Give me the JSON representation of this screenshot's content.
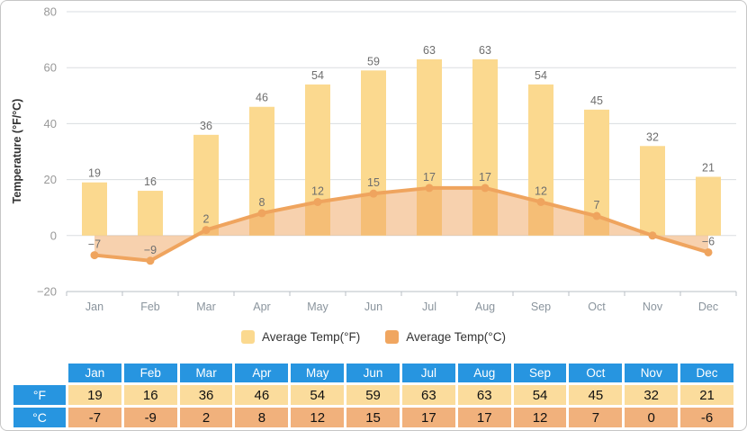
{
  "chart": {
    "y_axis_title": "Temperature (°F/°C)",
    "legend": [
      {
        "label": "Average Temp(°F)",
        "color": "#FBD98F"
      },
      {
        "label": "Average Temp(°C)",
        "color": "#F0A660"
      }
    ]
  },
  "chart_data": {
    "type": "bar+area",
    "title": "",
    "xlabel": "",
    "ylabel": "Temperature (°F/°C)",
    "categories": [
      "Jan",
      "Feb",
      "Mar",
      "Apr",
      "May",
      "Jun",
      "Jul",
      "Aug",
      "Sep",
      "Oct",
      "Nov",
      "Dec"
    ],
    "ylim": [
      -20,
      80
    ],
    "yticks": [
      80,
      60,
      40,
      20,
      0,
      -20
    ],
    "ytick_labels": [
      "80",
      "60",
      "40",
      "20",
      "0",
      "−20"
    ],
    "grid": true,
    "legend_position": "bottom",
    "series": [
      {
        "name": "Average Temp(°F)",
        "type": "bar",
        "color": "#FBD98F",
        "values": [
          19,
          16,
          36,
          46,
          54,
          59,
          63,
          63,
          54,
          45,
          32,
          21
        ],
        "labels": [
          "19",
          "16",
          "36",
          "46",
          "54",
          "59",
          "63",
          "63",
          "54",
          "45",
          "32",
          "21"
        ]
      },
      {
        "name": "Average Temp(°C)",
        "type": "area",
        "color": "#EFA45E",
        "area_fill": "rgba(239,164,94,0.5)",
        "values": [
          -7,
          -9,
          2,
          8,
          12,
          15,
          17,
          17,
          12,
          7,
          0,
          -6
        ],
        "labels": [
          "−7",
          "−9",
          "2",
          "8",
          "12",
          "15",
          "17",
          "17",
          "12",
          "7",
          "",
          "−6"
        ]
      }
    ]
  },
  "table": {
    "corner_label": "",
    "header_bg": "#2795E0",
    "columns": [
      "Jan",
      "Feb",
      "Mar",
      "Apr",
      "May",
      "Jun",
      "Jul",
      "Aug",
      "Sep",
      "Oct",
      "Nov",
      "Dec"
    ],
    "rows": [
      {
        "label": "°F",
        "bg": "#FBDC9C",
        "values": [
          "19",
          "16",
          "36",
          "46",
          "54",
          "59",
          "63",
          "63",
          "54",
          "45",
          "32",
          "21"
        ]
      },
      {
        "label": "°C",
        "bg": "#F1B17C",
        "values": [
          "-7",
          "-9",
          "2",
          "8",
          "12",
          "15",
          "17",
          "17",
          "12",
          "7",
          "0",
          "-6"
        ]
      }
    ]
  },
  "colors": {
    "grid_line": "#DADDE0",
    "axis_line": "#B9BFC6",
    "tick_text": "#999999",
    "month_text": "#8A949D",
    "value_label_text": "#6E6E6E",
    "axis_title_text": "#333333",
    "frame_border": "#C6C6C6"
  }
}
